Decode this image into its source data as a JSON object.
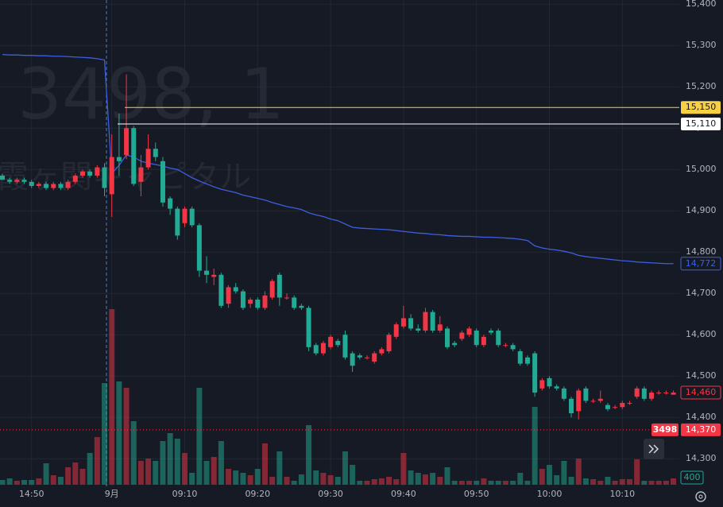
{
  "chart_data": {
    "type": "candlestick",
    "watermark": {
      "symbol": "3498, 1",
      "name": "霞ヶ関キャピタル"
    },
    "categories": [
      null,
      null,
      null,
      null,
      "14:50",
      null,
      null,
      null,
      null,
      null,
      null,
      null,
      null,
      null,
      null,
      "9月",
      null,
      null,
      null,
      null,
      null,
      null,
      null,
      null,
      null,
      "09:10",
      null,
      null,
      null,
      null,
      null,
      null,
      null,
      null,
      null,
      "09:20",
      null,
      null,
      null,
      null,
      null,
      null,
      null,
      null,
      null,
      "09:30",
      null,
      null,
      null,
      null,
      null,
      null,
      null,
      null,
      null,
      "09:40",
      null,
      null,
      null,
      null,
      null,
      null,
      null,
      null,
      null,
      "09:50",
      null,
      null,
      null,
      null,
      null,
      null,
      null,
      null,
      null,
      "10:00",
      null,
      null,
      null,
      null,
      null,
      null,
      null,
      null,
      null,
      "10:10",
      null,
      null,
      null,
      null,
      null,
      null,
      null
    ],
    "open": [
      14985,
      14975,
      14970,
      14975,
      14970,
      14960,
      14965,
      14955,
      14965,
      14955,
      14970,
      14985,
      14995,
      14985,
      15005,
      14940,
      15030,
      15035,
      15100,
      14970,
      15005,
      15050,
      15020,
      14930,
      14905,
      14870,
      14905,
      14865,
      14755,
      14740,
      14745,
      14675,
      14715,
      14705,
      14675,
      14685,
      14665,
      14690,
      14745,
      14690,
      14690,
      14670,
      14665,
      14575,
      14555,
      14570,
      14585,
      14600,
      14555,
      14550,
      14545,
      14535,
      14555,
      14560,
      14595,
      14620,
      14640,
      14615,
      14610,
      14655,
      14610,
      14615,
      14580,
      14590,
      14600,
      14610,
      14575,
      14610,
      14610,
      14575,
      14575,
      14560,
      14545,
      14555,
      14470,
      14495,
      14475,
      14470,
      14445,
      14415,
      14470,
      14440,
      14440,
      14430,
      14425,
      14425,
      14435,
      14450,
      14470,
      14445,
      14460,
      14460,
      14455
    ],
    "high": [
      14990,
      14980,
      14980,
      14980,
      14975,
      14970,
      14970,
      14970,
      14970,
      14975,
      14990,
      15000,
      15000,
      15010,
      15015,
      15085,
      15135,
      15230,
      15105,
      15035,
      15085,
      15065,
      15030,
      14935,
      14910,
      14910,
      14910,
      14870,
      14790,
      14760,
      14750,
      14720,
      14725,
      14710,
      14690,
      14690,
      14705,
      14735,
      14750,
      14700,
      14695,
      14675,
      14670,
      14580,
      14585,
      14600,
      14590,
      14610,
      14560,
      14555,
      14550,
      14560,
      14570,
      14605,
      14630,
      14670,
      14650,
      14625,
      14665,
      14660,
      14645,
      14620,
      14585,
      14610,
      14620,
      14615,
      14600,
      14615,
      14615,
      14580,
      14580,
      14565,
      14550,
      14560,
      14495,
      14500,
      14480,
      14475,
      14450,
      14470,
      14475,
      14445,
      14465,
      14435,
      14430,
      14440,
      14440,
      14475,
      14475,
      14465,
      14465,
      14465,
      14465
    ],
    "low": [
      14975,
      14965,
      14965,
      14965,
      14955,
      14955,
      14950,
      14950,
      14950,
      14950,
      14965,
      14980,
      14980,
      14980,
      14935,
      14885,
      14985,
      15025,
      14960,
      14935,
      15000,
      15020,
      14910,
      14890,
      14830,
      14860,
      14860,
      14740,
      14725,
      14720,
      14665,
      14665,
      14700,
      14660,
      14665,
      14660,
      14660,
      14685,
      14670,
      14685,
      14660,
      14660,
      14560,
      14550,
      14550,
      14565,
      14570,
      14540,
      14510,
      14540,
      14540,
      14530,
      14550,
      14555,
      14590,
      14615,
      14610,
      14605,
      14605,
      14605,
      14605,
      14565,
      14570,
      14585,
      14595,
      14570,
      14570,
      14600,
      14570,
      14570,
      14560,
      14525,
      14525,
      14450,
      14465,
      14470,
      14465,
      14440,
      14400,
      14395,
      14435,
      14435,
      14435,
      14415,
      14420,
      14420,
      14430,
      14445,
      14440,
      14440,
      14455,
      14455,
      14455
    ],
    "close": [
      14975,
      14970,
      14975,
      14970,
      14960,
      14965,
      14955,
      14965,
      14955,
      14970,
      14985,
      14995,
      14985,
      15005,
      14955,
      15030,
      15020,
      15100,
      14965,
      15005,
      15050,
      15030,
      14920,
      14905,
      14840,
      14905,
      14865,
      14755,
      14745,
      14745,
      14670,
      14715,
      14705,
      14665,
      14685,
      14665,
      14695,
      14730,
      14690,
      14690,
      14665,
      14665,
      14570,
      14555,
      14580,
      14595,
      14575,
      14545,
      14525,
      14545,
      14545,
      14555,
      14565,
      14600,
      14625,
      14640,
      14615,
      14610,
      14655,
      14610,
      14625,
      14570,
      14575,
      14605,
      14615,
      14575,
      14595,
      14605,
      14575,
      14575,
      14565,
      14530,
      14530,
      14460,
      14490,
      14475,
      14470,
      14445,
      14410,
      14465,
      14440,
      14440,
      14445,
      14420,
      14425,
      14435,
      14435,
      14470,
      14445,
      14460,
      14460,
      14460,
      14460
    ],
    "volume": [
      300,
      400,
      250,
      300,
      300,
      400,
      1350,
      600,
      500,
      1100,
      1400,
      1000,
      2000,
      3000,
      6400,
      11050,
      6500,
      6100,
      4000,
      1500,
      1650,
      1500,
      2750,
      3250,
      2900,
      2000,
      750,
      6100,
      1500,
      1750,
      2750,
      1000,
      900,
      750,
      600,
      1000,
      2600,
      500,
      2100,
      500,
      250,
      650,
      3750,
      900,
      750,
      600,
      500,
      2100,
      1250,
      250,
      250,
      350,
      400,
      500,
      350,
      2000,
      900,
      750,
      650,
      750,
      500,
      1100,
      250,
      250,
      250,
      250,
      400,
      250,
      250,
      250,
      250,
      750,
      250,
      4900,
      1000,
      1250,
      600,
      1500,
      500,
      1650,
      400,
      350,
      250,
      500,
      250,
      350,
      350,
      1600,
      250,
      250,
      250,
      250,
      400
    ],
    "up_color": "#f23645",
    "down_color": "#22ab94",
    "vwap": {
      "color": "#3d5fe0",
      "values": [
        15278,
        15277,
        15277,
        15276,
        15276,
        15275,
        15275,
        15274,
        15274,
        15273,
        15272,
        15271,
        15270,
        15268,
        15265,
        14990,
        15010,
        15035,
        15030,
        15020,
        15015,
        15012,
        15008,
        15003,
        15000,
        14990,
        14980,
        14972,
        14965,
        14958,
        14952,
        14948,
        14944,
        14938,
        14934,
        14930,
        14926,
        14920,
        14915,
        14910,
        14907,
        14903,
        14895,
        14890,
        14886,
        14880,
        14876,
        14868,
        14860,
        14858,
        14857,
        14856,
        14855,
        14854,
        14852,
        14850,
        14848,
        14846,
        14845,
        14843,
        14842,
        14840,
        14839,
        14838,
        14838,
        14837,
        14836,
        14836,
        14835,
        14834,
        14833,
        14831,
        14828,
        14815,
        14810,
        14807,
        14805,
        14802,
        14798,
        14792,
        14789,
        14787,
        14785,
        14783,
        14781,
        14779,
        14778,
        14776,
        14775,
        14774,
        14773,
        14772,
        14772
      ],
      "last_label": {
        "value": 14772,
        "label": "14,772"
      }
    },
    "last_price": {
      "value": 14460,
      "label": "14,460"
    },
    "price_lines": [
      {
        "value": 15150,
        "label": "15,150",
        "color": "#f7d046"
      },
      {
        "value": 15110,
        "label": "15,110",
        "color": "#ffffff"
      }
    ],
    "marker_line": {
      "value": 14370,
      "label": "14,370",
      "tag": "3498"
    },
    "ylim": [
      14237,
      15410
    ],
    "yticks": [
      {
        "value": 15400,
        "label": "15,400"
      },
      {
        "value": 15300,
        "label": "15,300"
      },
      {
        "value": 15200,
        "label": "15,200"
      },
      {
        "value": 15100,
        "label": "15,100"
      },
      {
        "value": 15000,
        "label": "15,000"
      },
      {
        "value": 14900,
        "label": "14,900"
      },
      {
        "value": 14800,
        "label": "14,800"
      },
      {
        "value": 14700,
        "label": "14,700"
      },
      {
        "value": 14600,
        "label": "14,600"
      },
      {
        "value": 14500,
        "label": "14,500"
      },
      {
        "value": 14400,
        "label": "14,400"
      },
      {
        "value": 14300,
        "label": "14,300"
      }
    ],
    "grid": true
  }
}
